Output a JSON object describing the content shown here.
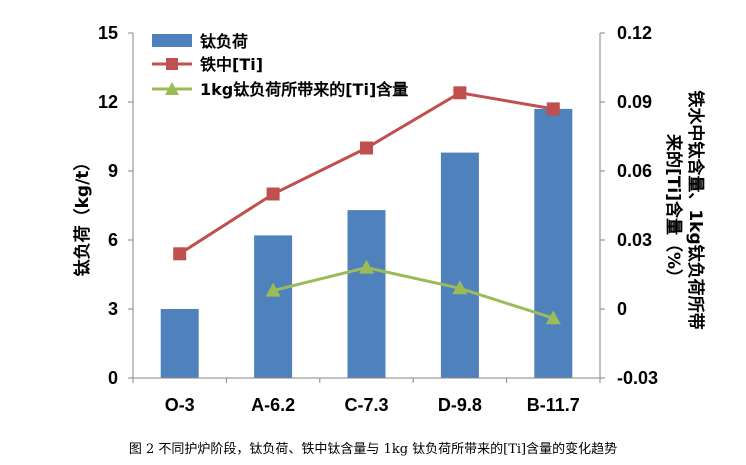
{
  "caption": "图 2   不同护炉阶段，钛负荷、铁中钛含量与 1kg 钛负荷所带来的[Ti]含量的变化趋势",
  "chart_data": {
    "type": "bar",
    "categories": [
      "O-3",
      "A-6.2",
      "C-7.3",
      "D-9.8",
      "B-11.7"
    ],
    "ylabel": "钛负荷（kg/t）",
    "y2label_line1": "铁水中钛含量、1kg钛负荷所带",
    "y2label_line2": "来的[Ti]含量（%）",
    "ylim": [
      0,
      15
    ],
    "y2lim": [
      -0.03,
      0.12
    ],
    "yticks": [
      "0",
      "3",
      "6",
      "9",
      "12",
      "15"
    ],
    "y2ticks": [
      "-0.03",
      "0",
      "0.03",
      "0.06",
      "0.09",
      "0.12"
    ],
    "grid": false,
    "legend_position": "top-left",
    "series": [
      {
        "name": "钛负荷",
        "type": "bar",
        "axis": "left",
        "color": "#4f81bd",
        "values": [
          3.0,
          6.2,
          7.3,
          9.8,
          11.7
        ]
      },
      {
        "name": "铁中[Ti]",
        "type": "line",
        "marker": "square",
        "axis": "right",
        "color": "#c0504d",
        "values": [
          0.024,
          0.05,
          0.07,
          0.094,
          0.087
        ]
      },
      {
        "name": "1kg钛负荷所带来的[Ti]含量",
        "type": "line",
        "marker": "triangle",
        "axis": "right",
        "color": "#9bbb59",
        "values": [
          null,
          0.008,
          0.018,
          0.009,
          -0.004
        ]
      }
    ]
  }
}
